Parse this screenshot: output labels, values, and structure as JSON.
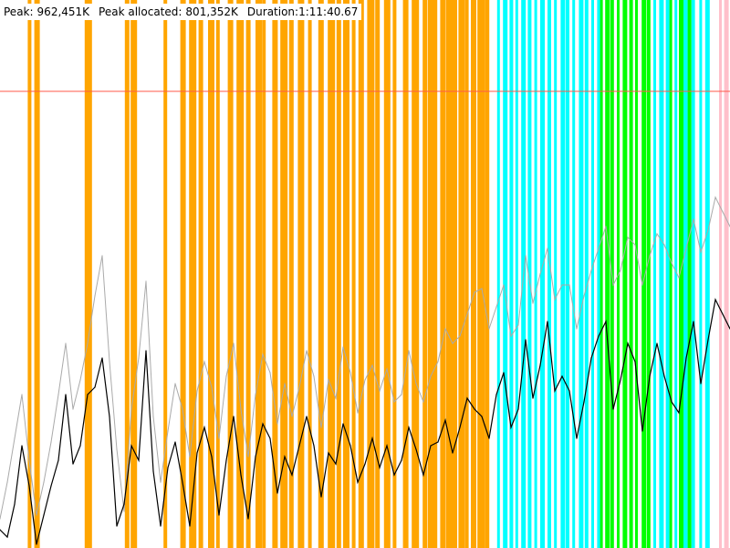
{
  "stats": {
    "peak_label": "Peak:",
    "peak_value": "962,451K",
    "peak_allocated_label": "Peak allocated:",
    "peak_allocated_value": "801,352K",
    "duration_label": "Duration:",
    "duration_value": "1:11:40.67"
  },
  "colors": {
    "background": "#ffffff",
    "peak_line": "#ff5a4a",
    "allocated_series": "#000000",
    "total_series": "#aaaaaa",
    "band_orange": "#ffa500",
    "band_cyan": "#00ffff",
    "band_green": "#00ff00",
    "band_pink": "#ffc0cb"
  },
  "chart_data": {
    "type": "line",
    "title": "",
    "xlabel": "",
    "ylabel": "",
    "xlim": [
      0,
      100
    ],
    "ylim": [
      0,
      1200000
    ],
    "peak_marker": 962451,
    "grid": false,
    "legend": "none",
    "x": [
      0,
      1,
      2,
      3,
      4,
      5,
      6,
      7,
      8,
      9,
      10,
      11,
      12,
      13,
      14,
      15,
      16,
      17,
      18,
      19,
      20,
      21,
      22,
      23,
      24,
      25,
      26,
      27,
      28,
      29,
      30,
      31,
      32,
      33,
      34,
      35,
      36,
      37,
      38,
      39,
      40,
      41,
      42,
      43,
      44,
      45,
      46,
      47,
      48,
      49,
      50,
      51,
      52,
      53,
      54,
      55,
      56,
      57,
      58,
      59,
      60,
      61,
      62,
      63,
      64,
      65,
      66,
      67,
      68,
      69,
      70,
      71,
      72,
      73,
      74,
      75,
      76,
      77,
      78,
      79,
      80,
      81,
      82,
      83,
      84,
      85,
      86,
      87,
      88,
      89,
      90,
      91,
      92,
      93,
      94,
      95,
      96,
      97,
      98,
      99,
      100
    ],
    "series": [
      {
        "role": "total",
        "values": [
          80000,
          180000,
          300000,
          420000,
          240000,
          90000,
          180000,
          290000,
          420000,
          560000,
          380000,
          460000,
          560000,
          690000,
          800000,
          510000,
          270000,
          100000,
          380000,
          520000,
          730000,
          360000,
          180000,
          320000,
          450000,
          380000,
          250000,
          430000,
          510000,
          440000,
          300000,
          470000,
          560000,
          380000,
          250000,
          420000,
          530000,
          480000,
          340000,
          450000,
          360000,
          440000,
          540000,
          470000,
          330000,
          460000,
          410000,
          550000,
          480000,
          370000,
          460000,
          500000,
          430000,
          490000,
          400000,
          420000,
          540000,
          450000,
          400000,
          470000,
          510000,
          600000,
          560000,
          580000,
          640000,
          700000,
          710000,
          600000,
          660000,
          720000,
          580000,
          610000,
          800000,
          670000,
          750000,
          820000,
          680000,
          720000,
          720000,
          600000,
          690000,
          760000,
          820000,
          880000,
          720000,
          760000,
          850000,
          830000,
          720000,
          800000,
          860000,
          830000,
          780000,
          740000,
          820000,
          900000,
          810000,
          870000,
          960000,
          920000,
          880000
        ]
      },
      {
        "role": "allocated",
        "values": [
          50000,
          30000,
          120000,
          280000,
          170000,
          10000,
          90000,
          170000,
          240000,
          420000,
          230000,
          280000,
          420000,
          440000,
          520000,
          360000,
          60000,
          120000,
          280000,
          240000,
          540000,
          210000,
          60000,
          220000,
          290000,
          180000,
          60000,
          260000,
          330000,
          250000,
          90000,
          240000,
          360000,
          200000,
          80000,
          250000,
          340000,
          300000,
          150000,
          250000,
          200000,
          280000,
          360000,
          280000,
          140000,
          260000,
          230000,
          340000,
          280000,
          180000,
          230000,
          300000,
          220000,
          280000,
          200000,
          240000,
          330000,
          270000,
          200000,
          280000,
          290000,
          350000,
          260000,
          330000,
          410000,
          380000,
          360000,
          300000,
          420000,
          480000,
          330000,
          380000,
          570000,
          410000,
          500000,
          620000,
          430000,
          470000,
          430000,
          300000,
          400000,
          520000,
          580000,
          620000,
          380000,
          460000,
          560000,
          510000,
          320000,
          470000,
          560000,
          470000,
          400000,
          370000,
          520000,
          620000,
          450000,
          570000,
          680000,
          640000,
          600000
        ]
      }
    ],
    "bands": [
      {
        "color": "orange",
        "x": [
          3.8,
          4.7,
          11.6,
          17.1,
          17.9,
          22.4,
          24.7,
          25.9,
          27.2,
          28.5,
          29.6,
          31.2,
          32.4,
          33.7,
          35.0,
          35.9,
          37.3,
          38.4,
          39.6,
          40.8,
          42.2,
          43.6,
          44.9,
          46.1,
          47.0,
          48.2,
          49.1,
          50.3,
          51.4,
          52.6,
          53.8,
          55.2,
          56.4,
          57.9,
          58.6,
          59.4,
          60.3,
          61.1,
          62.0,
          62.8,
          63.7,
          64.5,
          65.4,
          66.4
        ]
      },
      {
        "color": "cyan",
        "x": [
          68.1,
          68.9,
          69.8,
          70.6,
          71.4,
          72.3,
          73.2,
          74.0,
          75.0,
          75.9,
          76.8,
          77.5,
          78.4,
          79.3,
          80.1,
          81.0,
          81.8
        ]
      },
      {
        "color": "green",
        "x": [
          82.2,
          82.9,
          83.6,
          84.5,
          85.3,
          86.2,
          87.0,
          87.9,
          88.6
        ]
      },
      {
        "color": "cyan",
        "x": [
          89.5,
          90.3,
          91.2,
          92.4,
          93.6,
          94.7,
          95.8,
          96.6
        ]
      },
      {
        "color": "green",
        "x": [
          91.7,
          93.0,
          94.2
        ]
      },
      {
        "color": "pink",
        "x": [
          98.5,
          99.2
        ]
      }
    ]
  }
}
